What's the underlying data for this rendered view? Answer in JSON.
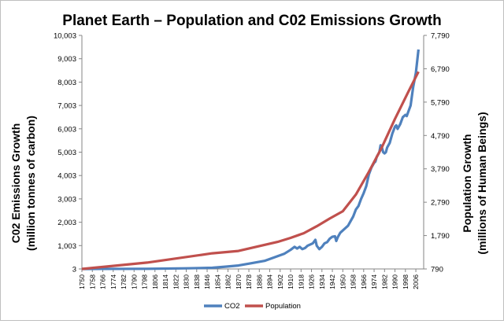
{
  "colors": {
    "co2": "#4f81bd",
    "population": "#c0504d",
    "axis": "#868686",
    "text": "#000000"
  },
  "chart_data": {
    "type": "line",
    "title": "Planet Earth – Population and C02 Emissions Growth",
    "y_left_label_line1": "C02 Emissions Growth",
    "y_left_label_line2": "(million tonnes of carbon)",
    "y_right_label_line1": "Population Growth",
    "y_right_label_line2": "(millions of Human Beings)",
    "grid": false,
    "legend_position": "bottom",
    "xlim": [
      1750,
      2012
    ],
    "y_left_ticks": [
      3,
      1003,
      2003,
      3003,
      4003,
      5003,
      6003,
      7003,
      8003,
      9003,
      10003
    ],
    "y_left_tick_labels": [
      "3",
      "1,003",
      "2,003",
      "3,003",
      "4,003",
      "5,003",
      "6,003",
      "7,003",
      "8,003",
      "9,003",
      "10,003"
    ],
    "ylim_left": [
      3,
      10003
    ],
    "y_right_ticks": [
      790,
      1790,
      2790,
      3790,
      4790,
      5790,
      6790,
      7790
    ],
    "y_right_tick_labels": [
      "790",
      "1,790",
      "2,790",
      "3,790",
      "4,790",
      "5,790",
      "6,790",
      "7,790"
    ],
    "ylim_right": [
      790,
      7790
    ],
    "x_ticks": [
      1750,
      1758,
      1766,
      1774,
      1782,
      1790,
      1798,
      1806,
      1814,
      1822,
      1830,
      1838,
      1846,
      1854,
      1862,
      1870,
      1878,
      1886,
      1894,
      1902,
      1910,
      1918,
      1926,
      1934,
      1942,
      1950,
      1958,
      1966,
      1974,
      1982,
      1990,
      1998,
      2006
    ],
    "series": [
      {
        "name": "CO2",
        "axis": "left",
        "x": [
          1750,
          1800,
          1830,
          1850,
          1860,
          1870,
          1880,
          1890,
          1900,
          1905,
          1910,
          1913,
          1915,
          1917,
          1919,
          1921,
          1923,
          1925,
          1927,
          1929,
          1930,
          1932,
          1934,
          1936,
          1938,
          1940,
          1942,
          1944,
          1945,
          1946,
          1948,
          1950,
          1952,
          1954,
          1956,
          1958,
          1960,
          1962,
          1964,
          1966,
          1968,
          1970,
          1972,
          1974,
          1975,
          1976,
          1978,
          1979,
          1980,
          1981,
          1982,
          1983,
          1984,
          1986,
          1988,
          1990,
          1991,
          1992,
          1994,
          1996,
          1998,
          1999,
          2000,
          2002,
          2004,
          2006,
          2008
        ],
        "values": [
          3,
          10,
          30,
          55,
          100,
          150,
          250,
          350,
          550,
          650,
          820,
          950,
          880,
          950,
          850,
          900,
          1000,
          1050,
          1100,
          1250,
          1000,
          850,
          950,
          1100,
          1150,
          1300,
          1380,
          1400,
          1200,
          1350,
          1550,
          1650,
          1750,
          1850,
          2050,
          2250,
          2550,
          2700,
          3000,
          3250,
          3550,
          4050,
          4350,
          4550,
          4600,
          4800,
          5000,
          5300,
          5200,
          5000,
          4950,
          5000,
          5200,
          5400,
          5800,
          6100,
          6150,
          6000,
          6200,
          6500,
          6600,
          6550,
          6700,
          7000,
          7800,
          8400,
          9400
        ]
      },
      {
        "name": "Population",
        "axis": "right",
        "x": [
          1750,
          1800,
          1850,
          1870,
          1900,
          1910,
          1920,
          1930,
          1940,
          1950,
          1960,
          1970,
          1980,
          1990,
          2000,
          2008
        ],
        "values": [
          790,
          980,
          1260,
          1330,
          1600,
          1720,
          1860,
          2070,
          2300,
          2520,
          3020,
          3700,
          4440,
          5290,
          6080,
          6700
        ]
      }
    ]
  }
}
